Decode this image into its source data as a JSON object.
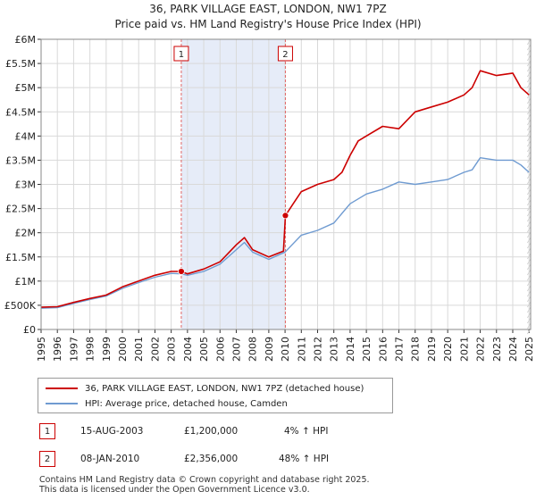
{
  "chart_data": {
    "type": "line",
    "title": "36, PARK VILLAGE EAST, LONDON, NW1 7PZ",
    "subtitle": "Price paid vs. HM Land Registry's House Price Index (HPI)",
    "xlim": [
      1995,
      2025.1
    ],
    "ylim": [
      0,
      6000000
    ],
    "y_ticks": [
      0,
      500000,
      1000000,
      1500000,
      2000000,
      2500000,
      3000000,
      3500000,
      4000000,
      4500000,
      5000000,
      5500000,
      6000000
    ],
    "y_tick_labels": [
      "£0",
      "£500K",
      "£1M",
      "£1.5M",
      "£2M",
      "£2.5M",
      "£3M",
      "£3.5M",
      "£4M",
      "£4.5M",
      "£5M",
      "£5.5M",
      "£6M"
    ],
    "x_ticks": [
      1995,
      1996,
      1997,
      1998,
      1999,
      2000,
      2001,
      2002,
      2003,
      2004,
      2005,
      2006,
      2007,
      2008,
      2009,
      2010,
      2011,
      2012,
      2013,
      2014,
      2015,
      2016,
      2017,
      2018,
      2019,
      2020,
      2021,
      2022,
      2023,
      2024,
      2025
    ],
    "x_tick_labels": [
      "1995",
      "1996",
      "1997",
      "1998",
      "1999",
      "2000",
      "2001",
      "2002",
      "2003",
      "2004",
      "2005",
      "2006",
      "2007",
      "2008",
      "2009",
      "2010",
      "2011",
      "2012",
      "2013",
      "2014",
      "2015",
      "2016",
      "2017",
      "2018",
      "2019",
      "2020",
      "2021",
      "2022",
      "2023",
      "2024",
      "2025"
    ],
    "grid": true,
    "shaded_period": [
      2003.62,
      2010.02
    ],
    "series": [
      {
        "name": "36, PARK VILLAGE EAST, LONDON, NW1 7PZ (detached house)",
        "color": "#cc0000",
        "points": [
          [
            1995.0,
            460000
          ],
          [
            1996.0,
            470000
          ],
          [
            1997.0,
            560000
          ],
          [
            1998.0,
            640000
          ],
          [
            1999.0,
            710000
          ],
          [
            2000.0,
            880000
          ],
          [
            2001.0,
            1000000
          ],
          [
            2002.0,
            1120000
          ],
          [
            2003.0,
            1200000
          ],
          [
            2003.62,
            1200000
          ],
          [
            2004.0,
            1150000
          ],
          [
            2005.0,
            1250000
          ],
          [
            2006.0,
            1400000
          ],
          [
            2007.0,
            1750000
          ],
          [
            2007.5,
            1900000
          ],
          [
            2008.0,
            1650000
          ],
          [
            2009.0,
            1500000
          ],
          [
            2009.9,
            1620000
          ],
          [
            2010.02,
            2356000
          ],
          [
            2010.5,
            2600000
          ],
          [
            2011.0,
            2850000
          ],
          [
            2012.0,
            3000000
          ],
          [
            2013.0,
            3100000
          ],
          [
            2013.5,
            3250000
          ],
          [
            2014.0,
            3600000
          ],
          [
            2014.5,
            3900000
          ],
          [
            2015.0,
            4000000
          ],
          [
            2016.0,
            4200000
          ],
          [
            2017.0,
            4150000
          ],
          [
            2018.0,
            4500000
          ],
          [
            2019.0,
            4600000
          ],
          [
            2020.0,
            4700000
          ],
          [
            2021.0,
            4850000
          ],
          [
            2021.5,
            5000000
          ],
          [
            2022.0,
            5350000
          ],
          [
            2023.0,
            5250000
          ],
          [
            2024.0,
            5300000
          ],
          [
            2024.5,
            5000000
          ],
          [
            2025.0,
            4850000
          ]
        ]
      },
      {
        "name": "HPI: Average price, detached house, Camden",
        "color": "#6f9bd1",
        "points": [
          [
            1995.0,
            440000
          ],
          [
            1996.0,
            450000
          ],
          [
            1997.0,
            540000
          ],
          [
            1998.0,
            620000
          ],
          [
            1999.0,
            690000
          ],
          [
            2000.0,
            850000
          ],
          [
            2001.0,
            970000
          ],
          [
            2002.0,
            1080000
          ],
          [
            2003.0,
            1160000
          ],
          [
            2003.62,
            1150000
          ],
          [
            2004.0,
            1120000
          ],
          [
            2005.0,
            1200000
          ],
          [
            2006.0,
            1350000
          ],
          [
            2007.0,
            1650000
          ],
          [
            2007.5,
            1800000
          ],
          [
            2008.0,
            1600000
          ],
          [
            2009.0,
            1450000
          ],
          [
            2010.0,
            1600000
          ],
          [
            2011.0,
            1950000
          ],
          [
            2012.0,
            2050000
          ],
          [
            2013.0,
            2200000
          ],
          [
            2014.0,
            2600000
          ],
          [
            2015.0,
            2800000
          ],
          [
            2016.0,
            2900000
          ],
          [
            2017.0,
            3050000
          ],
          [
            2018.0,
            3000000
          ],
          [
            2019.0,
            3050000
          ],
          [
            2020.0,
            3100000
          ],
          [
            2021.0,
            3250000
          ],
          [
            2021.5,
            3300000
          ],
          [
            2022.0,
            3550000
          ],
          [
            2023.0,
            3500000
          ],
          [
            2024.0,
            3500000
          ],
          [
            2024.5,
            3400000
          ],
          [
            2025.0,
            3250000
          ]
        ]
      }
    ],
    "annotations": [
      {
        "label": "1",
        "x": 2003.62,
        "y": 1200000
      },
      {
        "label": "2",
        "x": 2010.02,
        "y": 2356000
      }
    ]
  },
  "legend": {
    "items": [
      {
        "label": "36, PARK VILLAGE EAST, LONDON, NW1 7PZ (detached house)",
        "color": "#cc0000"
      },
      {
        "label": "HPI: Average price, detached house, Camden",
        "color": "#6f9bd1"
      }
    ]
  },
  "transactions": [
    {
      "num": "1",
      "date": "15-AUG-2003",
      "price": "£1,200,000",
      "hpi": "4% ↑ HPI"
    },
    {
      "num": "2",
      "date": "08-JAN-2010",
      "price": "£2,356,000",
      "hpi": "48% ↑ HPI"
    }
  ],
  "footer": {
    "line1": "Contains HM Land Registry data © Crown copyright and database right 2025.",
    "line2": "This data is licensed under the Open Government Licence v3.0."
  }
}
